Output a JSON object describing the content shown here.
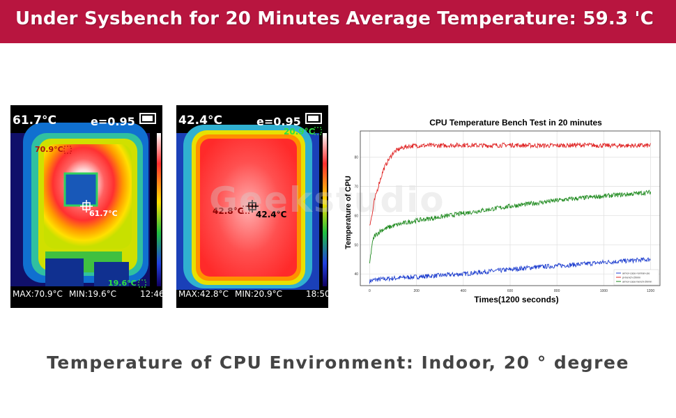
{
  "header": {
    "left": "Under Sysbench for 20 Minutes",
    "right": "Average Temperature:  59.3 'C",
    "bg_color": "#b8153f"
  },
  "thermal_left": {
    "center_temp": "61.7°C",
    "emissivity": "e=0.95",
    "hot_label": "70.9°C",
    "center_label": "61.7°C",
    "cold_label": "19.6°C",
    "max": "MAX:70.9°C",
    "min": "MIN:19.6°C",
    "time": "12:46"
  },
  "thermal_right": {
    "center_temp": "42.4°C",
    "emissivity": "e=0.95",
    "cold_label": "20.9°C",
    "hot_label": "42.8°C",
    "center_label": "42.4°C",
    "max": "MAX:42.8°C",
    "min": "MIN:20.9°C",
    "time": "18:50"
  },
  "watermark": "Geekstudio",
  "chart_data": {
    "type": "line",
    "title": "CPU Temperature Bench Test in 20 minutes",
    "xlabel": "Times(1200 seconds)",
    "ylabel": "Temperature of CPU",
    "xlim": [
      -40,
      1240
    ],
    "ylim": [
      36,
      89
    ],
    "x_ticks": [
      0,
      200,
      400,
      600,
      800,
      1000,
      1200
    ],
    "y_ticks": [
      40,
      50,
      60,
      70,
      80
    ],
    "grid": true,
    "legend_position": "bottom-right",
    "series": [
      {
        "name": "armor-case-normal-use",
        "color": "#1f3fcf",
        "x": [
          0,
          20,
          50,
          100,
          150,
          200,
          300,
          400,
          500,
          600,
          700,
          800,
          900,
          1000,
          1100,
          1200
        ],
        "y": [
          37.5,
          38,
          38.2,
          38.5,
          38.8,
          39,
          39.5,
          40,
          40.8,
          41.5,
          42.3,
          42.8,
          43.3,
          44,
          44.5,
          45
        ]
      },
      {
        "name": "pi-bench-20min",
        "color": "#e02424",
        "x": [
          0,
          10,
          20,
          40,
          60,
          80,
          100,
          130,
          160,
          200,
          300,
          400,
          500,
          600,
          700,
          800,
          900,
          1000,
          1100,
          1200
        ],
        "y": [
          57,
          60,
          65,
          71,
          76,
          79,
          81.5,
          83,
          83.7,
          84,
          84,
          84.2,
          84,
          84.2,
          84,
          84,
          84.2,
          84,
          84,
          84
        ]
      },
      {
        "name": "armor-case-bench-20min",
        "color": "#1e8a1e",
        "x": [
          0,
          10,
          20,
          50,
          100,
          150,
          200,
          300,
          400,
          500,
          600,
          700,
          800,
          900,
          1000,
          1100,
          1200
        ],
        "y": [
          43.5,
          50,
          53,
          55,
          56.5,
          57.5,
          58.3,
          59.5,
          60.8,
          62,
          63.2,
          64.2,
          65.2,
          66,
          66.7,
          67.3,
          68
        ]
      }
    ]
  },
  "footer": "Temperature of CPU Environment:  Indoor,  20 ° degree"
}
